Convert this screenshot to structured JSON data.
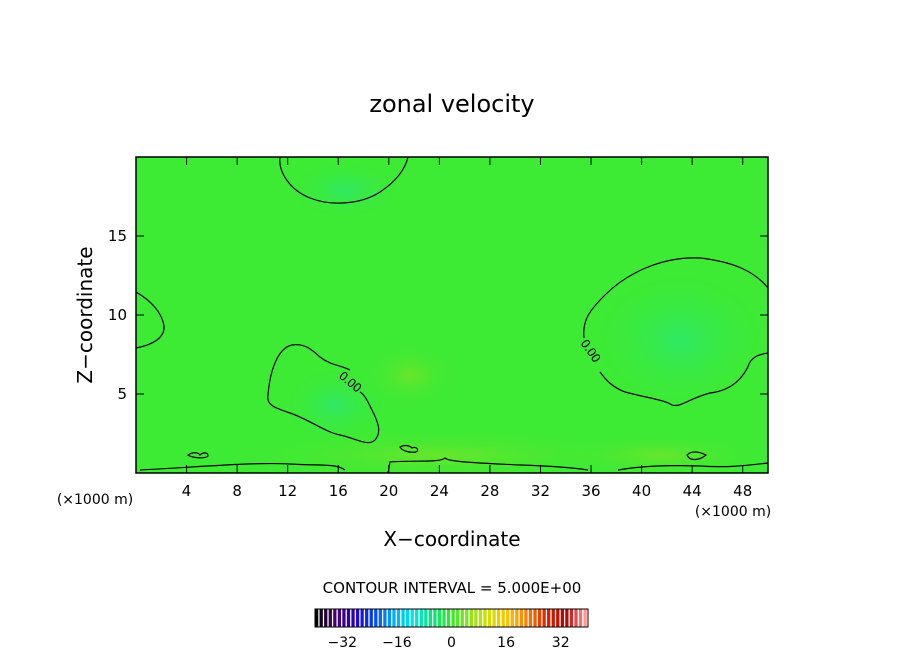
{
  "chart_data": {
    "type": "heatmap",
    "title": "zonal velocity",
    "xlabel": "X−coordinate",
    "ylabel": "Z−coordinate",
    "x_unit_left": "(×1000 m)",
    "x_unit_right": "(×1000 m)",
    "xlim": [
      0,
      50
    ],
    "ylim": [
      0,
      20
    ],
    "x_ticks": [
      4,
      8,
      12,
      16,
      20,
      24,
      28,
      32,
      36,
      40,
      44,
      48
    ],
    "y_ticks": [
      5,
      10,
      15
    ],
    "contour_interval_text": "CONTOUR INTERVAL = 5.000E+00",
    "contour_level": 0,
    "contour_labels": [
      "0.00",
      "0.00"
    ],
    "colorbar": {
      "min": -40,
      "max": 40,
      "ticks": [
        -32,
        -16,
        0,
        16,
        32
      ],
      "colormap": [
        "#000000",
        "#4b006e",
        "#2200cc",
        "#0044ff",
        "#00aaff",
        "#00e5e5",
        "#00e87a",
        "#33e82a",
        "#8ce51a",
        "#d4e000",
        "#ffc000",
        "#ff7a00",
        "#e02000",
        "#b00000",
        "#ff9999"
      ]
    },
    "background_color": "#3dea34"
  }
}
